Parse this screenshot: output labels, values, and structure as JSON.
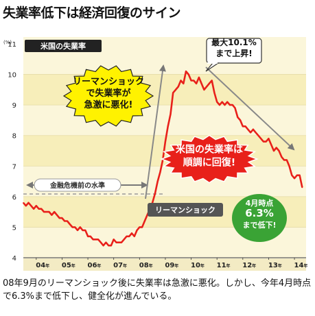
{
  "title": "失業率低下は経済回復のサイン",
  "caption": "08年9月のリーマンショック後に失業率は急激に悪化。しかし、今年4月時点で6.3%まで低下し、健全化が進んでいる。",
  "chart_data": {
    "type": "line",
    "panel_label": "米国の失業率",
    "y_unit": "(%)",
    "ylim": [
      4,
      11
    ],
    "y_ticks": [
      "4",
      "5",
      "6",
      "7",
      "8",
      "9",
      "10",
      "11"
    ],
    "x_ticks": [
      {
        "year": "04",
        "suffix": "年"
      },
      {
        "year": "05",
        "suffix": "年"
      },
      {
        "year": "06",
        "suffix": "年"
      },
      {
        "year": "07",
        "suffix": "年"
      },
      {
        "year": "08",
        "suffix": "年"
      },
      {
        "year": "09",
        "suffix": "年"
      },
      {
        "year": "10",
        "suffix": "年"
      },
      {
        "year": "11",
        "suffix": "年"
      },
      {
        "year": "12",
        "suffix": "年"
      },
      {
        "year": "13",
        "suffix": "年"
      },
      {
        "year": "14",
        "suffix": "年"
      }
    ],
    "xlim": [
      2003.5,
      2014.45
    ],
    "series_color": "#e8201a",
    "series": [
      {
        "x": [
          2003.5,
          2003.6,
          2003.7,
          2003.8,
          2003.9,
          2004.0,
          2004.1,
          2004.2,
          2004.3,
          2004.4,
          2004.5,
          2004.6,
          2004.7,
          2004.8,
          2004.9,
          2005.0,
          2005.1,
          2005.2,
          2005.3,
          2005.4,
          2005.5,
          2005.6,
          2005.7,
          2005.8,
          2005.9,
          2006.0,
          2006.1,
          2006.2,
          2006.3,
          2006.4,
          2006.5,
          2006.6,
          2006.7,
          2006.8,
          2006.9,
          2007.0,
          2007.1,
          2007.2,
          2007.3,
          2007.4,
          2007.5,
          2007.6,
          2007.7,
          2007.8,
          2007.9,
          2008.0,
          2008.1,
          2008.2,
          2008.3,
          2008.4,
          2008.5,
          2008.6,
          2008.7,
          2008.8,
          2008.9,
          2009.0,
          2009.1,
          2009.2,
          2009.3,
          2009.4,
          2009.5,
          2009.6,
          2009.7,
          2009.8,
          2009.9,
          2010.0,
          2010.1,
          2010.2,
          2010.3,
          2010.4,
          2010.5,
          2010.6,
          2010.7,
          2010.8,
          2010.9,
          2011.0,
          2011.1,
          2011.2,
          2011.3,
          2011.4,
          2011.5,
          2011.6,
          2011.7,
          2011.8,
          2011.9,
          2012.0,
          2012.1,
          2012.2,
          2012.3,
          2012.4,
          2012.5,
          2012.6,
          2012.7,
          2012.8,
          2012.9,
          2013.0,
          2013.1,
          2013.2,
          2013.3,
          2013.4,
          2013.5,
          2013.6,
          2013.7,
          2013.8,
          2013.9,
          2014.0,
          2014.1,
          2014.2,
          2014.3
        ],
        "values": [
          5.8,
          5.7,
          5.8,
          5.7,
          5.6,
          5.7,
          5.6,
          5.6,
          5.5,
          5.5,
          5.5,
          5.4,
          5.5,
          5.4,
          5.3,
          5.3,
          5.2,
          5.2,
          5.1,
          5.0,
          5.0,
          4.9,
          5.0,
          4.9,
          4.9,
          4.7,
          4.7,
          4.6,
          4.6,
          4.6,
          4.5,
          4.4,
          4.5,
          4.4,
          4.4,
          4.6,
          4.5,
          4.5,
          4.5,
          4.6,
          4.7,
          4.7,
          4.8,
          4.7,
          4.9,
          5.0,
          5.0,
          5.2,
          5.4,
          5.6,
          5.8,
          6.1,
          6.5,
          6.8,
          7.2,
          7.8,
          8.3,
          8.7,
          9.4,
          9.5,
          9.6,
          9.8,
          9.7,
          10.1,
          10.0,
          9.8,
          9.8,
          9.7,
          9.9,
          9.7,
          9.5,
          9.6,
          9.7,
          9.8,
          9.4,
          9.1,
          9.0,
          9.1,
          9.0,
          9.1,
          9.0,
          9.0,
          8.9,
          8.6,
          8.5,
          8.3,
          8.3,
          8.2,
          8.1,
          8.2,
          8.1,
          8.0,
          7.9,
          7.8,
          7.8,
          7.9,
          7.7,
          7.5,
          7.6,
          7.5,
          7.3,
          7.2,
          7.2,
          7.0,
          6.7,
          6.6,
          6.7,
          6.7,
          6.3
        ]
      }
    ],
    "annotations": {
      "peak": "最大10.1%\nまで上昇!",
      "worsen": "リーマンショック\nで失業率が\n急激に悪化!",
      "recovery": "米国の失業率は\n順調に回復!",
      "precrisis": "金融危機前の水準",
      "lehman": "リーマンショック",
      "latest": "4月時点\n6.3%\nまで低下!"
    }
  }
}
